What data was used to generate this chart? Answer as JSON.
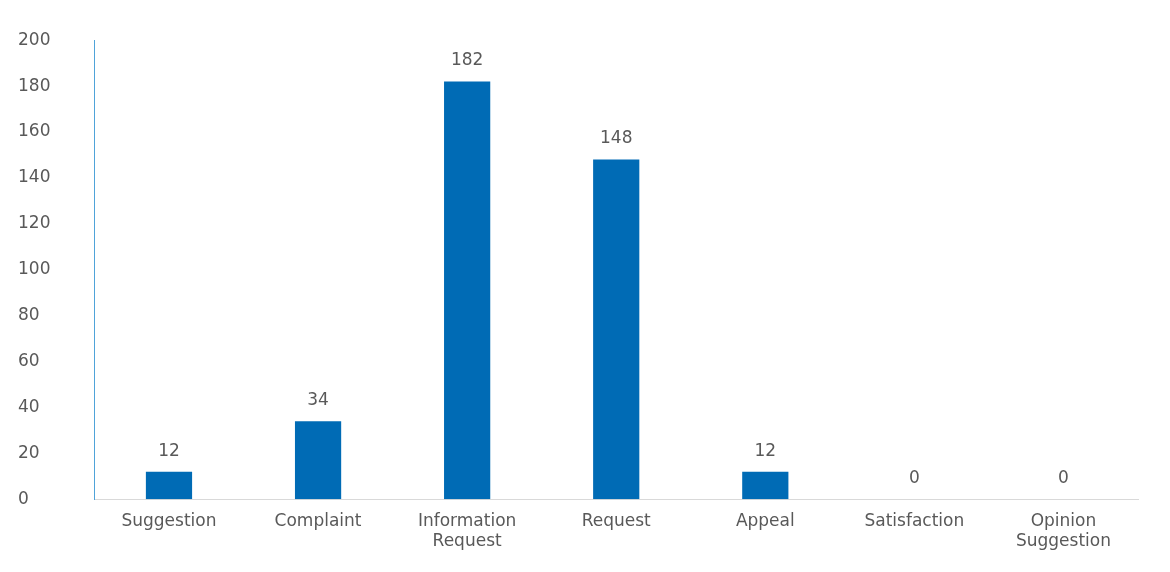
{
  "chart_data": {
    "type": "bar",
    "categories": [
      "Suggestion",
      "Complaint",
      "Information Request",
      "Request",
      "Appeal",
      "Satisfaction",
      "Opinion Suggestion"
    ],
    "values": [
      12,
      34,
      182,
      148,
      12,
      0,
      0
    ],
    "color": "#006bb5",
    "ylim": [
      0,
      200
    ],
    "yticks": [
      0,
      20,
      40,
      60,
      80,
      100,
      120,
      140,
      160,
      180,
      200
    ],
    "grid": false,
    "data_labels": true,
    "legend": false
  }
}
